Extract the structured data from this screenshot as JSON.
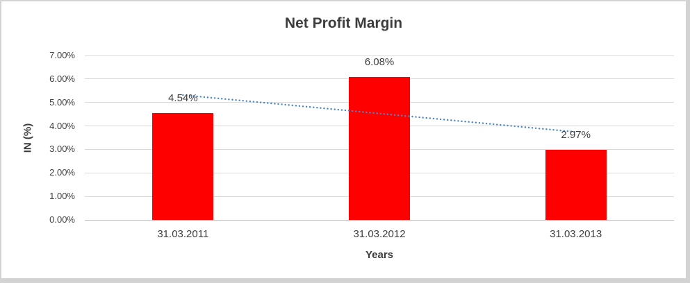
{
  "chart_data": {
    "type": "bar",
    "title": "Net Profit Margin",
    "xlabel": "Years",
    "ylabel": "IN (%)",
    "categories": [
      "31.03.2011",
      "31.03.2012",
      "31.03.2013"
    ],
    "values": [
      4.54,
      6.08,
      2.97
    ],
    "data_labels": [
      "4.54%",
      "6.08%",
      "2.97%"
    ],
    "ylim": [
      0,
      7
    ],
    "ytick_step": 1,
    "ytick_labels": [
      "0.00%",
      "1.00%",
      "2.00%",
      "3.00%",
      "4.00%",
      "5.00%",
      "6.00%",
      "7.00%"
    ],
    "grid": true,
    "legend": "none",
    "bar_color": "#ff0000",
    "gridline_color": "#d9d9d9",
    "axis_line_color": "#bfbfbf",
    "text_color": "#404040",
    "trendline": {
      "type": "linear",
      "style": "dotted",
      "color": "#4a86c8",
      "start_value": 5.32,
      "end_value": 3.75
    }
  }
}
